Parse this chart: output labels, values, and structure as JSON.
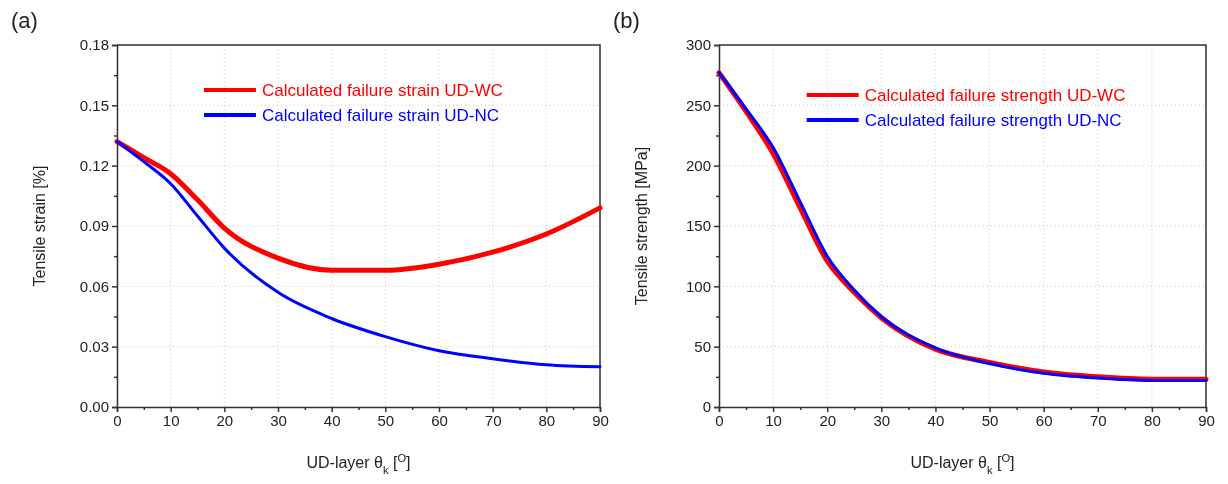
{
  "chart_data": [
    {
      "type": "line",
      "xlabel": "UD-layer θ$_{k}$ [$^{O}$]",
      "ylabel": "Tensile strain [%]",
      "annotations": [
        "(a)"
      ],
      "xlim": [
        0,
        90
      ],
      "ylim": [
        0,
        0.18
      ],
      "xticks": [
        0,
        {
          "value": 5,
          "label": null
        },
        10,
        {
          "value": 15,
          "label": null
        },
        20,
        {
          "value": 25,
          "label": null
        },
        30,
        {
          "value": 35,
          "label": null
        },
        40,
        {
          "value": 45,
          "label": null
        },
        50,
        {
          "value": 55,
          "label": null
        },
        60,
        {
          "value": 65,
          "label": null
        },
        70,
        {
          "value": 75,
          "label": null
        },
        80,
        {
          "value": 85,
          "label": null
        },
        90
      ],
      "yticks": [
        {
          "value": 0,
          "label": "0.00"
        },
        {
          "value": 0.015,
          "label": null
        },
        {
          "value": 0.03,
          "label": "0.03"
        },
        {
          "value": 0.045,
          "label": null
        },
        {
          "value": 0.06,
          "label": "0.06"
        },
        {
          "value": 0.075,
          "label": null
        },
        {
          "value": 0.09,
          "label": "0.09"
        },
        {
          "value": 0.105,
          "label": null
        },
        {
          "value": 0.12,
          "label": "0.12"
        },
        {
          "value": 0.135,
          "label": null
        },
        {
          "value": 0.15,
          "label": "0.15"
        },
        {
          "value": 0.165,
          "label": null
        },
        {
          "value": 0.18,
          "label": "0.18"
        }
      ],
      "grid": true,
      "legend": "top right",
      "marker": "none",
      "line_style": "solid",
      "series": [
        {
          "name": "Calculated failure strain UD-WC",
          "color": "#ff0000",
          "x": [
            0,
            5,
            10,
            15,
            20,
            30,
            40,
            50,
            60,
            70,
            80,
            90
          ],
          "values": [
            0.132,
            0.124,
            0.116,
            0.103,
            0.089,
            0.074,
            0.068,
            0.068,
            0.071,
            0.077,
            0.086,
            0.099
          ]
        },
        {
          "name": "Calculated failure strain UD-NC",
          "color": "#0000ff",
          "x": [
            0,
            5,
            10,
            15,
            20,
            30,
            40,
            50,
            60,
            70,
            80,
            90
          ],
          "values": [
            0.132,
            0.122,
            0.111,
            0.095,
            0.079,
            0.057,
            0.044,
            0.035,
            0.028,
            0.024,
            0.021,
            0.02
          ]
        }
      ]
    },
    {
      "type": "line",
      "xlabel": "UD-layer θ$_{k}$ [$^{O}$]",
      "ylabel": "Tensile strength [MPa]",
      "annotations": [
        "(b)"
      ],
      "xlim": [
        0,
        90
      ],
      "ylim": [
        0,
        300
      ],
      "xticks": [
        0,
        {
          "value": 5,
          "label": null
        },
        10,
        {
          "value": 15,
          "label": null
        },
        20,
        {
          "value": 25,
          "label": null
        },
        30,
        {
          "value": 35,
          "label": null
        },
        40,
        {
          "value": 45,
          "label": null
        },
        50,
        {
          "value": 55,
          "label": null
        },
        60,
        {
          "value": 65,
          "label": null
        },
        70,
        {
          "value": 75,
          "label": null
        },
        80,
        {
          "value": 85,
          "label": null
        },
        90
      ],
      "yticks": [
        0,
        {
          "value": 25,
          "label": null
        },
        50,
        {
          "value": 75,
          "label": null
        },
        100,
        {
          "value": 125,
          "label": null
        },
        150,
        {
          "value": 175,
          "label": null
        },
        200,
        {
          "value": 225,
          "label": null
        },
        250,
        {
          "value": 275,
          "label": null
        },
        300
      ],
      "grid": true,
      "legend": "top right",
      "marker": "none",
      "line_style": "solid",
      "series": [
        {
          "name": "Calculated failure strength UD-WC",
          "color": "#ff0000",
          "x": [
            0,
            5,
            10,
            15,
            20,
            25,
            30,
            40,
            50,
            60,
            70,
            80,
            90
          ],
          "values": [
            277,
            245,
            210,
            165,
            121,
            95,
            74,
            48,
            37,
            29,
            25,
            23,
            23
          ]
        },
        {
          "name": "Calculated failure strength UD-NC",
          "color": "#0000ff",
          "x": [
            0,
            5,
            10,
            15,
            20,
            25,
            30,
            40,
            50,
            60,
            70,
            80,
            90
          ],
          "values": [
            277,
            247,
            215,
            170,
            125,
            97,
            75,
            49,
            36,
            28,
            24,
            22,
            22
          ]
        }
      ]
    }
  ]
}
